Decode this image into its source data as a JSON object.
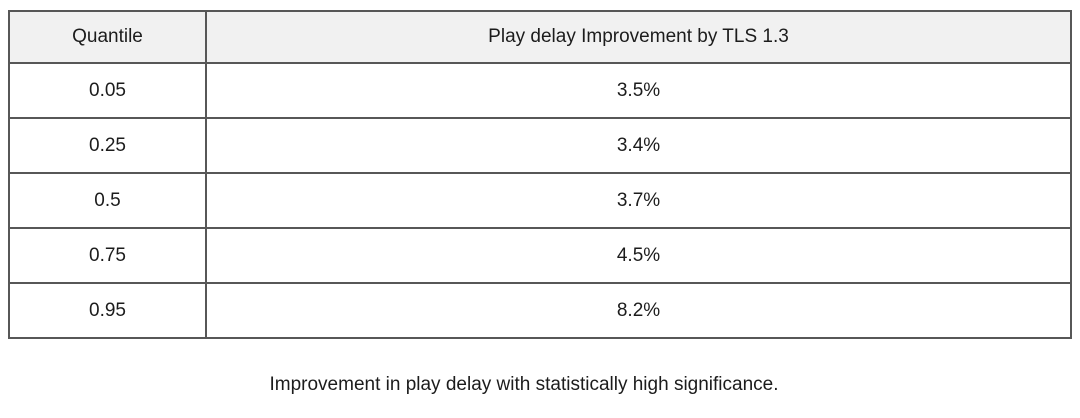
{
  "table": {
    "columns": [
      "Quantile",
      "Play delay Improvement by TLS 1.3"
    ],
    "rows": [
      {
        "quantile": "0.05",
        "improvement": "3.5%"
      },
      {
        "quantile": "0.25",
        "improvement": "3.4%"
      },
      {
        "quantile": "0.5",
        "improvement": "3.7%"
      },
      {
        "quantile": "0.75",
        "improvement": "4.5%"
      },
      {
        "quantile": "0.95",
        "improvement": "8.2%"
      }
    ]
  },
  "caption": "Improvement in play delay with statistically high significance.",
  "colors": {
    "header_bg": "#f1f1f1",
    "border": "#575757",
    "text": "#1c1c1c",
    "background": "#ffffff"
  },
  "chart_data": {
    "type": "table",
    "title": "Play delay Improvement by TLS 1.3",
    "columns": [
      "Quantile",
      "Play delay Improvement by TLS 1.3"
    ],
    "quantiles": [
      0.05,
      0.25,
      0.5,
      0.75,
      0.95
    ],
    "improvement_percent": [
      3.5,
      3.4,
      3.7,
      4.5,
      8.2
    ],
    "caption": "Improvement in play delay with statistically high significance.",
    "layout": {
      "header_shaded": true,
      "grid": "full-borders",
      "value_alignment": "center"
    }
  }
}
